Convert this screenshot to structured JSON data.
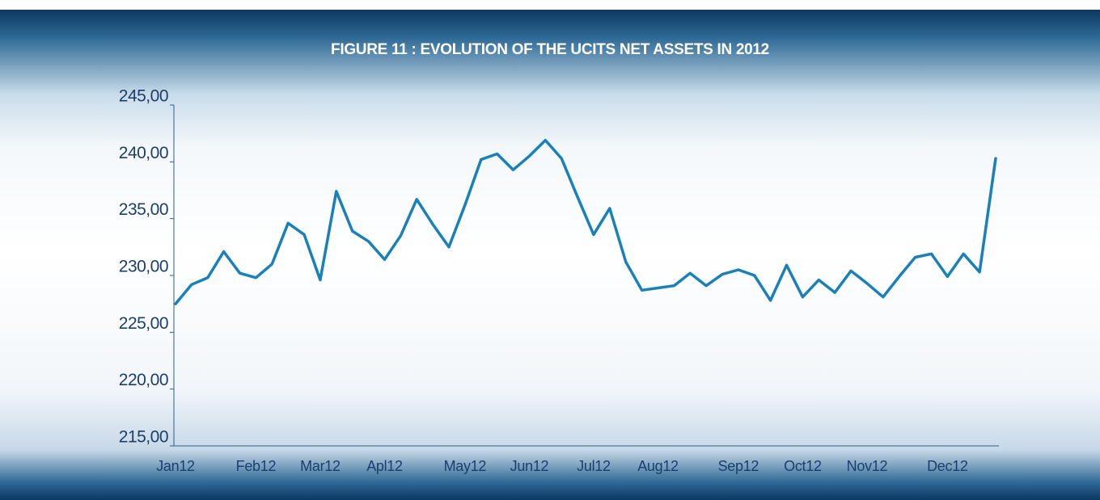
{
  "chart_data": {
    "type": "line",
    "title": "FIGURE  11 : EVOLUTION OF THE UCITS NET ASSETS IN 2012",
    "categories": [
      "Jan12",
      null,
      null,
      null,
      null,
      "Feb12",
      null,
      null,
      null,
      "Mar12",
      null,
      null,
      null,
      "Apl12",
      null,
      null,
      null,
      null,
      "May12",
      null,
      null,
      null,
      "Jun12",
      null,
      null,
      null,
      "Jul12",
      null,
      null,
      null,
      "Aug12",
      null,
      null,
      null,
      null,
      "Sep12",
      null,
      null,
      null,
      "Oct12",
      null,
      null,
      null,
      "Nov12",
      null,
      null,
      null,
      null,
      "Dec12",
      null,
      null,
      null
    ],
    "series": [
      {
        "name": "UCITS net assets",
        "color": "#1a80b8",
        "values": [
          227.5,
          229.2,
          229.8,
          232.1,
          230.2,
          229.8,
          231.0,
          234.6,
          233.6,
          229.6,
          237.4,
          233.9,
          233.0,
          231.4,
          233.5,
          236.7,
          234.5,
          232.5,
          236.2,
          240.2,
          240.7,
          239.3,
          240.5,
          241.9,
          240.3,
          236.9,
          233.6,
          235.9,
          231.2,
          228.7,
          228.9,
          229.1,
          230.2,
          229.1,
          230.1,
          230.5,
          230.0,
          227.8,
          230.9,
          228.1,
          229.6,
          228.5,
          230.4,
          229.3,
          228.1,
          229.9,
          231.6,
          231.9,
          229.9,
          231.9,
          230.3,
          240.3
        ]
      }
    ],
    "ylim": [
      215,
      245
    ],
    "yticks": [
      {
        "value": 215,
        "label": "215,00"
      },
      {
        "value": 220,
        "label": "220,00"
      },
      {
        "value": 225,
        "label": "225,00"
      },
      {
        "value": 230,
        "label": "230,00"
      },
      {
        "value": 235,
        "label": "235,00"
      },
      {
        "value": 240,
        "label": "240,00"
      },
      {
        "value": 245,
        "label": "245,00"
      }
    ],
    "grid": false
  }
}
